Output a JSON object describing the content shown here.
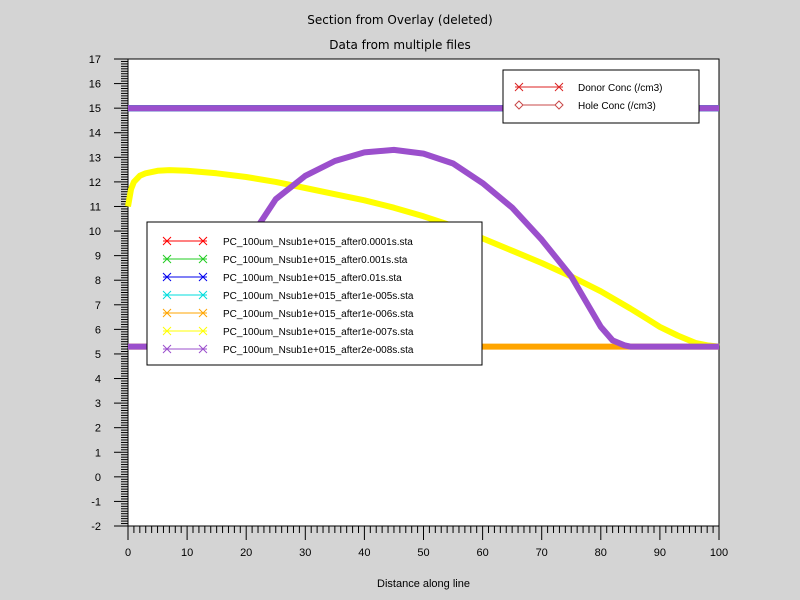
{
  "chart_data": {
    "type": "line",
    "title": "Section from Overlay (deleted)",
    "subtitle": "Data from multiple files",
    "xlabel": "Distance along line",
    "ylabel": "",
    "xlim": [
      0,
      100
    ],
    "ylim": [
      -2,
      17
    ],
    "xticks": [
      0,
      10,
      20,
      30,
      40,
      50,
      60,
      70,
      80,
      90,
      100
    ],
    "yticks": [
      -2,
      -1,
      0,
      1,
      2,
      3,
      4,
      5,
      6,
      7,
      8,
      9,
      10,
      11,
      12,
      13,
      14,
      15,
      16,
      17
    ],
    "grid": false,
    "colors": {
      "background": "#d4d4d4",
      "plot_area": "#ffffff",
      "donor": "#ff0000",
      "hole": "#cc4444"
    },
    "quantity_legend": [
      {
        "name": "Donor Conc (/cm3)",
        "marker": "x",
        "color": "#dd2222"
      },
      {
        "name": "Hole Conc (/cm3)",
        "marker": "diamond",
        "color": "#c84848"
      }
    ],
    "series": [
      {
        "name": "PC_100um_Nsub1e+015_after0.0001s.sta",
        "color": "#ff0000",
        "quantity": "Donor Conc (/cm3)",
        "x": [
          0,
          100
        ],
        "y": [
          15,
          15
        ]
      },
      {
        "name": "PC_100um_Nsub1e+015_after0.001s.sta",
        "color": "#22cc22",
        "quantity": "Donor Conc (/cm3)",
        "x": [
          0,
          100
        ],
        "y": [
          15,
          15
        ]
      },
      {
        "name": "PC_100um_Nsub1e+015_after0.01s.sta",
        "color": "#0000ee",
        "quantity": "Donor Conc (/cm3)",
        "x": [
          0,
          100
        ],
        "y": [
          15,
          15
        ]
      },
      {
        "name": "PC_100um_Nsub1e+015_after1e-005s.sta",
        "color": "#00dddd",
        "quantity": "Donor Conc (/cm3)",
        "x": [
          0,
          100
        ],
        "y": [
          15,
          15
        ]
      },
      {
        "name": "PC_100um_Nsub1e+015_after1e-006s.sta",
        "color": "#ffa500",
        "quantity": "Hole Conc (/cm3)",
        "x": [
          0,
          100
        ],
        "y": [
          5.3,
          5.3
        ]
      },
      {
        "name": "PC_100um_Nsub1e+015_after1e-007s.sta",
        "color": "#ffff00",
        "quantity": "Hole Conc (/cm3)",
        "x": [
          0,
          0.5,
          1,
          2,
          3,
          5,
          7,
          10,
          15,
          20,
          25,
          30,
          35,
          40,
          45,
          50,
          55,
          60,
          65,
          70,
          75,
          80,
          85,
          88,
          90,
          93,
          96,
          98,
          100
        ],
        "y": [
          11.0,
          11.7,
          12.0,
          12.25,
          12.35,
          12.45,
          12.48,
          12.45,
          12.35,
          12.2,
          12.0,
          11.75,
          11.5,
          11.25,
          10.95,
          10.6,
          10.2,
          9.7,
          9.2,
          8.7,
          8.15,
          7.55,
          6.85,
          6.4,
          6.1,
          5.75,
          5.45,
          5.35,
          5.3
        ]
      },
      {
        "name": "PC_100um_Nsub1e+015_after2e-008s.sta",
        "color": "#9b4fcc",
        "quantity": "Donor/Hole Conc (/cm3)",
        "donor": {
          "x": [
            0,
            100
          ],
          "y": [
            15,
            15
          ]
        },
        "x": [
          0,
          20,
          22,
          25,
          30,
          35,
          40,
          45,
          50,
          55,
          60,
          65,
          70,
          75,
          80,
          82,
          84,
          85,
          86,
          90,
          100
        ],
        "y": [
          5.3,
          5.3,
          10.2,
          11.3,
          12.25,
          12.85,
          13.2,
          13.3,
          13.15,
          12.75,
          11.95,
          10.95,
          9.65,
          8.15,
          6.1,
          5.55,
          5.35,
          5.3,
          5.3,
          5.3,
          5.3
        ]
      }
    ]
  }
}
